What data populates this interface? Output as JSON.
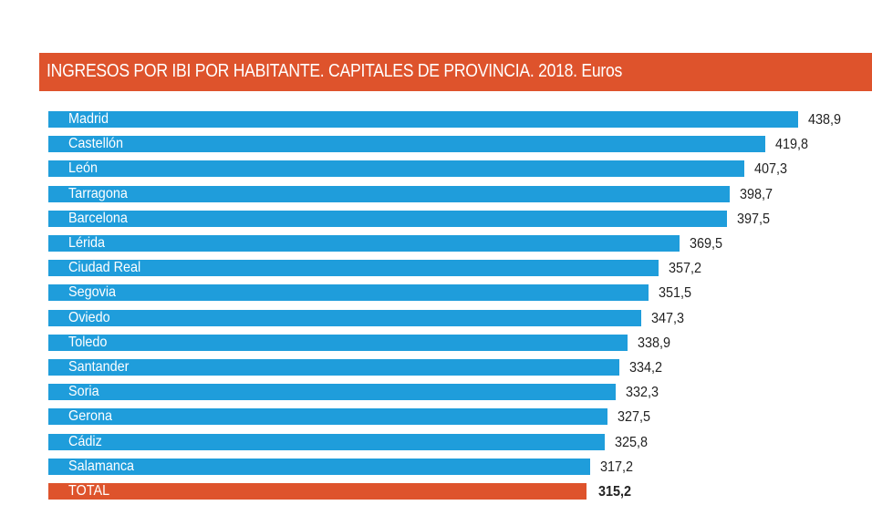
{
  "chart_data": {
    "type": "bar",
    "orientation": "horizontal",
    "title": "INGRESOS POR IBI POR HABITANTE. CAPITALES DE PROVINCIA. 2018. Euros",
    "categories": [
      "Madrid",
      "Castellón",
      "León",
      "Tarragona",
      "Barcelona",
      "Lérida",
      "Ciudad Real",
      "Segovia",
      "Oviedo",
      "Toledo",
      "Santander",
      "Soria",
      "Gerona",
      "Cádiz",
      "Salamanca",
      "TOTAL"
    ],
    "values": [
      438.9,
      419.8,
      407.3,
      398.7,
      397.5,
      369.5,
      357.2,
      351.5,
      347.3,
      338.9,
      334.2,
      332.3,
      327.5,
      325.8,
      317.2,
      315.2
    ],
    "value_labels": [
      "438,9",
      "419,8",
      "407,3",
      "398,7",
      "397,5",
      "369,5",
      "357,2",
      "351,5",
      "347,3",
      "338,9",
      "334,2",
      "332,3",
      "327,5",
      "325,8",
      "317,2",
      "315,2"
    ],
    "xlim": [
      0,
      438.9
    ],
    "grid": false,
    "colors": {
      "bar": "#1F9DDB",
      "total_bar": "#DE532C",
      "title_bg": "#DE532C"
    }
  }
}
